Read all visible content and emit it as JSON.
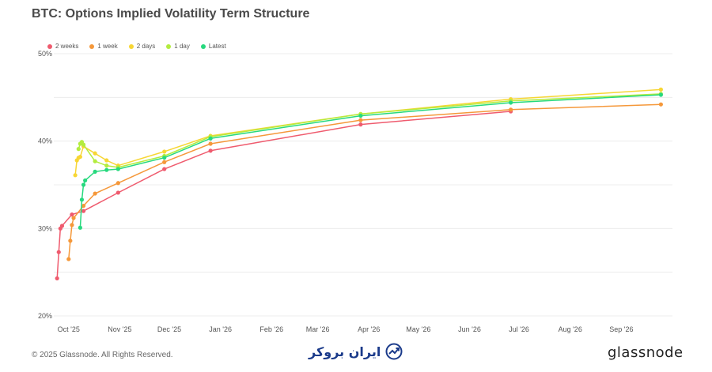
{
  "title": "BTC: Options Implied Volatility Term Structure",
  "footer": {
    "copyright": "© 2025 Glassnode. All Rights Reserved.",
    "brand": "glassnode",
    "watermark": "ایران بروکر"
  },
  "legend": [
    {
      "name": "2 weeks",
      "color": "#ef5b6e"
    },
    {
      "name": "1 week",
      "color": "#f5983a"
    },
    {
      "name": "2 days",
      "color": "#f7d634"
    },
    {
      "name": "1 day",
      "color": "#b3ec3f"
    },
    {
      "name": "Latest",
      "color": "#27d97e"
    }
  ],
  "chart_data": {
    "type": "line",
    "title": "BTC: Options Implied Volatility Term Structure",
    "xlabel": "",
    "ylabel": "",
    "ylim": [
      20,
      50
    ],
    "yticks": [
      "20%",
      "30%",
      "40%",
      "50%"
    ],
    "xticks": [
      "Oct '25",
      "Nov '25",
      "Dec '25",
      "Jan '26",
      "Feb '26",
      "Mar '26",
      "Apr '26",
      "May '26",
      "Jun '26",
      "Jul '26",
      "Aug '26",
      "Sep '26"
    ],
    "xlim": [
      "2025-09-22",
      "2026-10-02"
    ],
    "grid": true,
    "legend_position": "top-left",
    "series": [
      {
        "name": "2 weeks",
        "color": "#ef5b6e",
        "points": [
          [
            "2025-09-24",
            24.3
          ],
          [
            "2025-09-25",
            27.3
          ],
          [
            "2025-09-26",
            30.0
          ],
          [
            "2025-09-27",
            30.3
          ],
          [
            "2025-10-03",
            31.6
          ],
          [
            "2025-10-10",
            32.0
          ],
          [
            "2025-10-31",
            34.1
          ],
          [
            "2025-11-28",
            36.8
          ],
          [
            "2025-12-26",
            38.9
          ],
          [
            "2026-03-27",
            41.9
          ],
          [
            "2026-06-26",
            43.4
          ]
        ]
      },
      {
        "name": "1 week",
        "color": "#f5983a",
        "points": [
          [
            "2025-10-01",
            26.5
          ],
          [
            "2025-10-02",
            28.6
          ],
          [
            "2025-10-03",
            30.4
          ],
          [
            "2025-10-04",
            31.2
          ],
          [
            "2025-10-10",
            32.6
          ],
          [
            "2025-10-17",
            34.0
          ],
          [
            "2025-10-31",
            35.2
          ],
          [
            "2025-11-28",
            37.6
          ],
          [
            "2025-12-26",
            39.7
          ],
          [
            "2026-03-27",
            42.4
          ],
          [
            "2026-06-26",
            43.6
          ],
          [
            "2026-09-25",
            44.2
          ]
        ]
      },
      {
        "name": "2 days",
        "color": "#f7d634",
        "points": [
          [
            "2025-10-05",
            36.1
          ],
          [
            "2025-10-06",
            37.8
          ],
          [
            "2025-10-07",
            38.1
          ],
          [
            "2025-10-08",
            38.2
          ],
          [
            "2025-10-10",
            39.4
          ],
          [
            "2025-10-17",
            38.6
          ],
          [
            "2025-10-24",
            37.8
          ],
          [
            "2025-10-31",
            37.2
          ],
          [
            "2025-11-28",
            38.8
          ],
          [
            "2025-12-26",
            40.6
          ],
          [
            "2026-03-27",
            43.1
          ],
          [
            "2026-06-26",
            44.8
          ],
          [
            "2026-09-25",
            45.9
          ]
        ]
      },
      {
        "name": "1 day",
        "color": "#b3ec3f",
        "points": [
          [
            "2025-10-07",
            39.1
          ],
          [
            "2025-10-08",
            39.7
          ],
          [
            "2025-10-09",
            39.9
          ],
          [
            "2025-10-10",
            39.6
          ],
          [
            "2025-10-17",
            37.7
          ],
          [
            "2025-10-24",
            37.2
          ],
          [
            "2025-10-31",
            37.0
          ],
          [
            "2025-11-28",
            38.3
          ],
          [
            "2025-12-26",
            40.5
          ],
          [
            "2026-03-27",
            43.1
          ],
          [
            "2026-06-26",
            44.6
          ],
          [
            "2026-09-25",
            45.4
          ]
        ]
      },
      {
        "name": "Latest",
        "color": "#27d97e",
        "points": [
          [
            "2025-10-08",
            30.1
          ],
          [
            "2025-10-09",
            33.3
          ],
          [
            "2025-10-10",
            35.0
          ],
          [
            "2025-10-11",
            35.5
          ],
          [
            "2025-10-17",
            36.5
          ],
          [
            "2025-10-24",
            36.7
          ],
          [
            "2025-10-31",
            36.8
          ],
          [
            "2025-11-28",
            38.1
          ],
          [
            "2025-12-26",
            40.3
          ],
          [
            "2026-03-27",
            42.9
          ],
          [
            "2026-06-26",
            44.4
          ],
          [
            "2026-09-25",
            45.3
          ]
        ]
      }
    ]
  }
}
